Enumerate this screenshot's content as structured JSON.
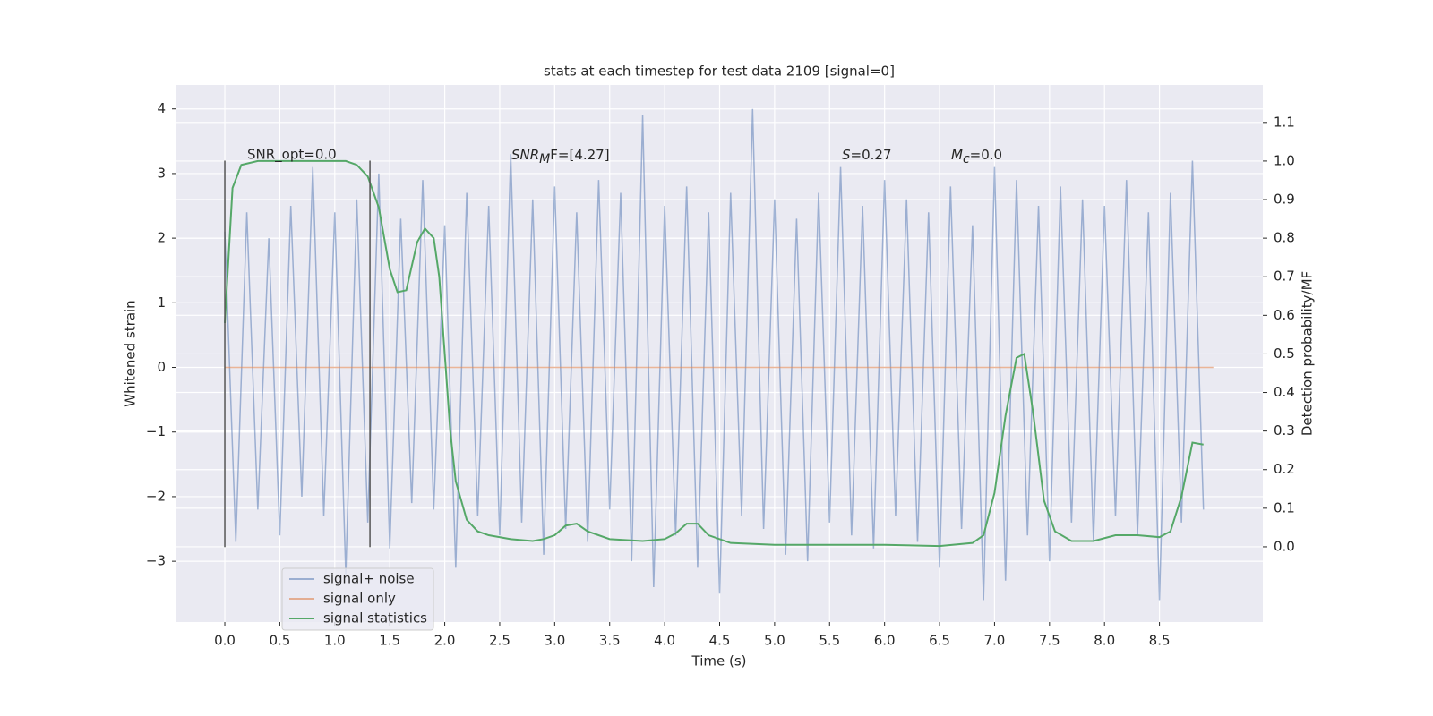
{
  "chart_data": {
    "type": "line",
    "title": "stats at each timestep for test data 2109 [signal=0]",
    "xlabel": "Time (s)",
    "ylabel": "Whitened strain",
    "y2label": "Detection probability/MF",
    "xlim": [
      -0.44,
      9.44
    ],
    "ylim": [
      -3.94,
      4.37
    ],
    "y2lim": [
      -0.195,
      1.197
    ],
    "xticks": [
      {
        "value": 0,
        "label": "0.0"
      },
      {
        "value": 0.5,
        "label": "0.5"
      },
      {
        "value": 1,
        "label": "1.0"
      },
      {
        "value": 1.5,
        "label": "1.5"
      },
      {
        "value": 2,
        "label": "2.0"
      },
      {
        "value": 2.5,
        "label": "2.5"
      },
      {
        "value": 3,
        "label": "3.0"
      },
      {
        "value": 3.5,
        "label": "3.5"
      },
      {
        "value": 4,
        "label": "4.0"
      },
      {
        "value": 4.5,
        "label": "4.5"
      },
      {
        "value": 5,
        "label": "5.0"
      },
      {
        "value": 5.5,
        "label": "5.5"
      },
      {
        "value": 6,
        "label": "6.0"
      },
      {
        "value": 6.5,
        "label": "6.5"
      },
      {
        "value": 7,
        "label": "7.0"
      },
      {
        "value": 7.5,
        "label": "7.5"
      },
      {
        "value": 8,
        "label": "8.0"
      },
      {
        "value": 8.5,
        "label": "8.5"
      }
    ],
    "yticks": [
      {
        "value": -3,
        "label": "−3"
      },
      {
        "value": -2,
        "label": "−2"
      },
      {
        "value": -1,
        "label": "−1"
      },
      0,
      1,
      2,
      3,
      4
    ],
    "y2ticks": [
      {
        "value": 0,
        "label": "0.0"
      },
      {
        "value": 0.1,
        "label": "0.1"
      },
      {
        "value": 0.2,
        "label": "0.2"
      },
      {
        "value": 0.3,
        "label": "0.3"
      },
      {
        "value": 0.4,
        "label": "0.4"
      },
      {
        "value": 0.5,
        "label": "0.5"
      },
      {
        "value": 0.6,
        "label": "0.6"
      },
      {
        "value": 0.7,
        "label": "0.7"
      },
      {
        "value": 0.8,
        "label": "0.8"
      },
      {
        "value": 0.9,
        "label": "0.9"
      },
      {
        "value": 1,
        "label": "1.0"
      },
      {
        "value": 1.1,
        "label": "1.1"
      }
    ],
    "grid": true,
    "legend": "lower left",
    "series": [
      {
        "name": "signal+ noise",
        "color": "#4c72b0",
        "x": [
          0,
          0.1,
          0.2,
          0.3,
          0.4,
          0.5,
          0.6,
          0.7,
          0.8,
          0.9,
          1,
          1.1,
          1.2,
          1.3,
          1.4,
          1.5,
          1.6,
          1.7,
          1.8,
          1.9,
          2,
          2.1,
          2.2,
          2.3,
          2.4,
          2.5,
          2.6,
          2.7,
          2.8,
          2.9,
          3,
          3.1,
          3.2,
          3.3,
          3.4,
          3.5,
          3.6,
          3.7,
          3.8,
          3.9,
          4,
          4.1,
          4.2,
          4.3,
          4.4,
          4.5,
          4.6,
          4.7,
          4.8,
          4.9,
          5,
          5.1,
          5.2,
          5.3,
          5.4,
          5.5,
          5.6,
          5.7,
          5.8,
          5.9,
          6,
          6.1,
          6.2,
          6.3,
          6.4,
          6.5,
          6.6,
          6.7,
          6.8,
          6.9,
          7,
          7.1,
          7.2,
          7.3,
          7.4,
          7.5,
          7.6,
          7.7,
          7.8,
          7.9,
          8,
          8.1,
          8.2,
          8.3,
          8.4,
          8.5,
          8.6,
          8.7,
          8.8,
          8.9
        ],
        "values": [
          2.1,
          -2.7,
          2.4,
          -2.2,
          2.0,
          -2.6,
          2.5,
          -2.0,
          3.1,
          -2.3,
          2.4,
          -3.2,
          2.6,
          -2.4,
          3.0,
          -2.8,
          2.3,
          -2.1,
          2.9,
          -2.2,
          2.2,
          -3.1,
          2.7,
          -2.3,
          2.5,
          -2.6,
          3.3,
          -2.4,
          2.6,
          -2.9,
          2.8,
          -2.5,
          2.4,
          -2.7,
          2.9,
          -2.2,
          2.7,
          -3.0,
          3.9,
          -3.4,
          2.5,
          -2.6,
          2.8,
          -3.1,
          2.4,
          -3.5,
          2.7,
          -2.3,
          4.0,
          -2.5,
          2.6,
          -2.9,
          2.3,
          -3.0,
          2.7,
          -2.4,
          3.1,
          -2.6,
          2.5,
          -2.8,
          2.9,
          -2.3,
          2.6,
          -2.7,
          2.4,
          -3.1,
          2.8,
          -2.5,
          2.2,
          -3.6,
          3.1,
          -3.3,
          2.9,
          -2.6,
          2.5,
          -3.0,
          2.8,
          -2.4,
          2.6,
          -2.7,
          2.5,
          -2.3,
          2.9,
          -2.6,
          2.4,
          -3.6,
          2.7,
          -2.4,
          3.2,
          -2.2
        ]
      },
      {
        "name": "signal only",
        "color": "#dd8452",
        "x": [
          0,
          8.99
        ],
        "values": [
          0,
          0
        ]
      },
      {
        "name": "signal statistics",
        "color": "#55a868",
        "axis": "y2",
        "x": [
          0,
          0.07,
          0.15,
          0.3,
          1,
          1.1,
          1.2,
          1.3,
          1.4,
          1.5,
          1.57,
          1.65,
          1.75,
          1.82,
          1.9,
          1.95,
          2,
          2.05,
          2.1,
          2.2,
          2.3,
          2.4,
          2.6,
          2.8,
          2.9,
          3,
          3.1,
          3.2,
          3.3,
          3.5,
          3.8,
          4,
          4.1,
          4.2,
          4.3,
          4.4,
          4.6,
          5,
          6,
          6.5,
          6.8,
          6.9,
          7,
          7.1,
          7.2,
          7.27,
          7.35,
          7.45,
          7.55,
          7.7,
          7.9,
          8.1,
          8.3,
          8.5,
          8.6,
          8.7,
          8.8,
          8.9
        ],
        "values": [
          0.58,
          0.93,
          0.99,
          1,
          1,
          1,
          0.99,
          0.96,
          0.88,
          0.72,
          0.66,
          0.665,
          0.79,
          0.825,
          0.8,
          0.7,
          0.5,
          0.3,
          0.17,
          0.07,
          0.04,
          0.03,
          0.02,
          0.015,
          0.02,
          0.03,
          0.055,
          0.06,
          0.04,
          0.02,
          0.015,
          0.02,
          0.035,
          0.06,
          0.06,
          0.03,
          0.01,
          0.005,
          0.005,
          0.002,
          0.01,
          0.03,
          0.14,
          0.34,
          0.49,
          0.5,
          0.35,
          0.12,
          0.04,
          0.015,
          0.015,
          0.03,
          0.03,
          0.025,
          0.04,
          0.13,
          0.27,
          0.265
        ]
      }
    ],
    "vlines": [
      {
        "x": 0,
        "ymin": -2.78,
        "ymax": 3.2,
        "color": "#555555"
      },
      {
        "x": 1.32,
        "ymin": -2.78,
        "ymax": 3.2,
        "color": "#555555"
      }
    ],
    "annotations": [
      {
        "text": "SNR_opt=0.0"
      },
      {
        "base": "SNR",
        "sub": "M",
        "tail": "F=[4.27]"
      },
      {
        "base": "S",
        "tail": "=0.27"
      },
      {
        "base": "M",
        "sub": "c",
        "tail": "=0.0"
      }
    ]
  }
}
